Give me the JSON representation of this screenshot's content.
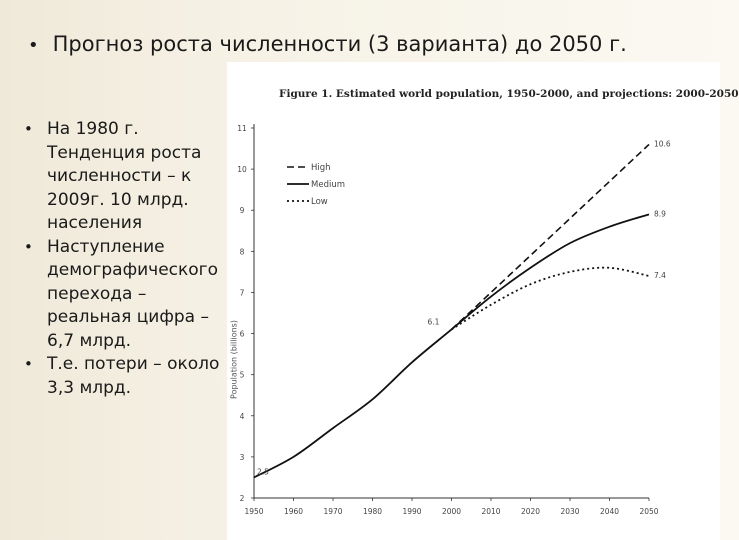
{
  "slide": {
    "title": "Прогноз роста численности (3 варианта) до 2050 г.",
    "bullets": [
      "На 1980 г. Тенденция роста численности – к 2009г. 10 млрд. населения",
      "Наступление демографического перехода – реальная цифра – 6,7 млрд.",
      "Т.е. потери – около 3,3 млрд."
    ]
  },
  "chart_data": {
    "type": "line",
    "title": "Figure 1. Estimated world population, 1950-2000, and projections: 2000-2050",
    "xlabel": "",
    "ylabel": "Population (billions)",
    "xlim": [
      1950,
      2050
    ],
    "ylim": [
      2,
      11
    ],
    "x_ticks": [
      1950,
      1960,
      1970,
      1980,
      1990,
      2000,
      2010,
      2020,
      2030,
      2040,
      2050
    ],
    "y_ticks": [
      2,
      3,
      4,
      5,
      6,
      7,
      8,
      9,
      10,
      11
    ],
    "grid": false,
    "legend_position": "top-left",
    "series": [
      {
        "name": "High",
        "style": "dashed",
        "x": [
          2000,
          2010,
          2020,
          2030,
          2040,
          2050
        ],
        "y": [
          6.1,
          7.0,
          7.9,
          8.8,
          9.7,
          10.6
        ]
      },
      {
        "name": "Medium",
        "style": "solid",
        "x": [
          1950,
          1960,
          1970,
          1980,
          1990,
          2000,
          2010,
          2020,
          2030,
          2040,
          2050
        ],
        "y": [
          2.5,
          3.0,
          3.7,
          4.4,
          5.3,
          6.1,
          6.9,
          7.6,
          8.2,
          8.6,
          8.9
        ]
      },
      {
        "name": "Low",
        "style": "dotted",
        "x": [
          2000,
          2010,
          2020,
          2030,
          2040,
          2050
        ],
        "y": [
          6.1,
          6.7,
          7.2,
          7.5,
          7.6,
          7.4
        ]
      }
    ],
    "annotations": [
      {
        "x": 1950,
        "y": 2.5,
        "text": "2.5"
      },
      {
        "x": 2000,
        "y": 6.1,
        "text": "6.1"
      },
      {
        "x": 2050,
        "y": 10.6,
        "text": "10.6"
      },
      {
        "x": 2050,
        "y": 8.9,
        "text": "8.9"
      },
      {
        "x": 2050,
        "y": 7.4,
        "text": "7.4"
      }
    ]
  }
}
